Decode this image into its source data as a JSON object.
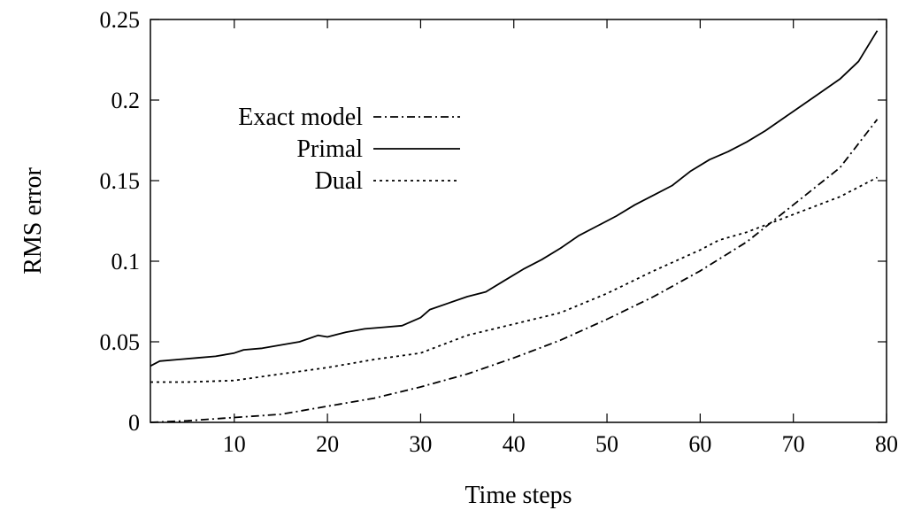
{
  "chart_data": {
    "type": "line",
    "xlabel": "Time steps",
    "ylabel": "RMS error",
    "xlim": [
      1,
      80
    ],
    "ylim": [
      0,
      0.25
    ],
    "x_ticks": [
      10,
      20,
      30,
      40,
      50,
      60,
      70,
      80
    ],
    "y_ticks": [
      0,
      0.05,
      0.1,
      0.15,
      0.2,
      0.25
    ],
    "y_tick_labels": [
      "0",
      "0.05",
      "0.1",
      "0.15",
      "0.2",
      "0.25"
    ],
    "grid": false,
    "legend_position": "top-left",
    "series": [
      {
        "name": "Exact model",
        "dash": "dash-dot",
        "points": [
          [
            1,
            0.0
          ],
          [
            5,
            0.001
          ],
          [
            10,
            0.003
          ],
          [
            15,
            0.005
          ],
          [
            20,
            0.01
          ],
          [
            25,
            0.015
          ],
          [
            30,
            0.022
          ],
          [
            35,
            0.03
          ],
          [
            40,
            0.04
          ],
          [
            45,
            0.051
          ],
          [
            50,
            0.064
          ],
          [
            55,
            0.078
          ],
          [
            60,
            0.094
          ],
          [
            65,
            0.112
          ],
          [
            70,
            0.135
          ],
          [
            75,
            0.158
          ],
          [
            79,
            0.188
          ]
        ]
      },
      {
        "name": "Primal",
        "dash": "solid",
        "points": [
          [
            1,
            0.035
          ],
          [
            2,
            0.038
          ],
          [
            4,
            0.039
          ],
          [
            6,
            0.04
          ],
          [
            8,
            0.041
          ],
          [
            10,
            0.043
          ],
          [
            11,
            0.045
          ],
          [
            13,
            0.046
          ],
          [
            15,
            0.048
          ],
          [
            17,
            0.05
          ],
          [
            19,
            0.054
          ],
          [
            20,
            0.053
          ],
          [
            22,
            0.056
          ],
          [
            24,
            0.058
          ],
          [
            26,
            0.059
          ],
          [
            28,
            0.06
          ],
          [
            30,
            0.065
          ],
          [
            31,
            0.07
          ],
          [
            33,
            0.074
          ],
          [
            35,
            0.078
          ],
          [
            37,
            0.081
          ],
          [
            39,
            0.088
          ],
          [
            41,
            0.095
          ],
          [
            43,
            0.101
          ],
          [
            45,
            0.108
          ],
          [
            47,
            0.116
          ],
          [
            49,
            0.122
          ],
          [
            51,
            0.128
          ],
          [
            53,
            0.135
          ],
          [
            55,
            0.141
          ],
          [
            57,
            0.147
          ],
          [
            59,
            0.156
          ],
          [
            61,
            0.163
          ],
          [
            63,
            0.168
          ],
          [
            65,
            0.174
          ],
          [
            67,
            0.181
          ],
          [
            69,
            0.189
          ],
          [
            71,
            0.197
          ],
          [
            73,
            0.205
          ],
          [
            75,
            0.213
          ],
          [
            77,
            0.224
          ],
          [
            79,
            0.243
          ]
        ]
      },
      {
        "name": "Dual",
        "dash": "dotted",
        "points": [
          [
            1,
            0.025
          ],
          [
            5,
            0.025
          ],
          [
            10,
            0.026
          ],
          [
            15,
            0.03
          ],
          [
            20,
            0.034
          ],
          [
            25,
            0.039
          ],
          [
            30,
            0.043
          ],
          [
            35,
            0.054
          ],
          [
            40,
            0.061
          ],
          [
            45,
            0.068
          ],
          [
            50,
            0.08
          ],
          [
            55,
            0.094
          ],
          [
            60,
            0.107
          ],
          [
            62,
            0.113
          ],
          [
            65,
            0.118
          ],
          [
            70,
            0.129
          ],
          [
            75,
            0.14
          ],
          [
            79,
            0.152
          ]
        ]
      }
    ]
  }
}
